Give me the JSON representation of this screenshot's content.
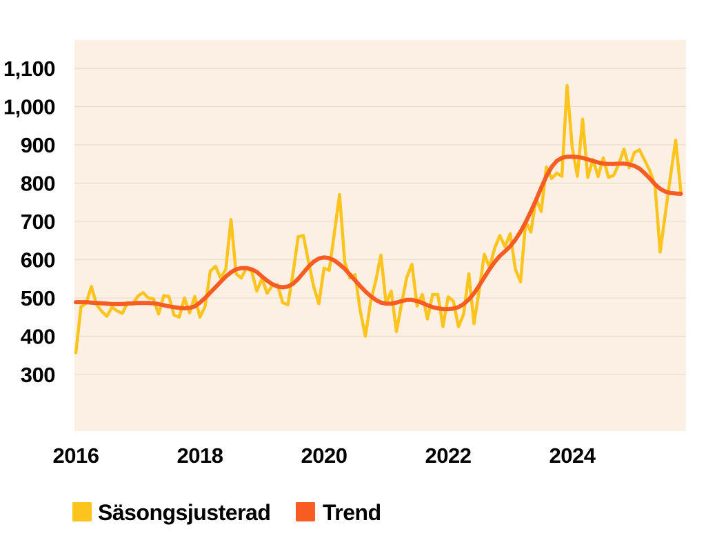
{
  "chart_data": {
    "type": "line",
    "frequency": "monthly",
    "x_start": "2016-01",
    "x_end": "2025-10",
    "x_axis": {
      "ticks": [
        {
          "year": 2016,
          "label": "2016"
        },
        {
          "year": 2018,
          "label": "2018"
        },
        {
          "year": 2020,
          "label": "2020"
        },
        {
          "year": 2022,
          "label": "2022"
        },
        {
          "year": 2024,
          "label": "2024"
        }
      ]
    },
    "y_axis": {
      "range": [
        300,
        1100
      ],
      "ticks": [
        {
          "value": 300,
          "label": "300"
        },
        {
          "value": 400,
          "label": "400"
        },
        {
          "value": 500,
          "label": "500"
        },
        {
          "value": 600,
          "label": "600"
        },
        {
          "value": 700,
          "label": "700"
        },
        {
          "value": 800,
          "label": "800"
        },
        {
          "value": 900,
          "label": "900"
        },
        {
          "value": 1000,
          "label": "1,000"
        },
        {
          "value": 1100,
          "label": "1,100"
        }
      ]
    },
    "grid": "horizontal",
    "legend_position": "bottom",
    "colors": {
      "page_background": "#FFFFFF",
      "plot_background": "#FBF0E3",
      "grid_line": "#E8DCCD",
      "text": "#000000"
    },
    "series": [
      {
        "name": "Säsongsjusterad",
        "color": "#FCC41C",
        "stroke_width": 4.5,
        "values": [
          357,
          477,
          486,
          530,
          483,
          465,
          452,
          476,
          466,
          460,
          488,
          484,
          505,
          514,
          500,
          498,
          458,
          506,
          504,
          455,
          450,
          500,
          461,
          504,
          450,
          478,
          570,
          583,
          552,
          575,
          705,
          563,
          552,
          579,
          570,
          518,
          551,
          512,
          533,
          535,
          488,
          482,
          565,
          660,
          663,
          594,
          530,
          485,
          578,
          572,
          670,
          770,
          594,
          552,
          561,
          467,
          400,
          490,
          545,
          612,
          485,
          518,
          412,
          485,
          554,
          588,
          479,
          509,
          445,
          509,
          509,
          425,
          503,
          492,
          425,
          458,
          563,
          433,
          520,
          614,
          580,
          630,
          663,
          634,
          668,
          575,
          542,
          700,
          672,
          760,
          726,
          842,
          812,
          826,
          818,
          1055,
          893,
          818,
          967,
          815,
          862,
          817,
          866,
          815,
          820,
          850,
          889,
          840,
          880,
          887,
          860,
          832,
          795,
          620,
          720,
          818,
          912,
          778
        ]
      },
      {
        "name": "Trend",
        "color": "#F75C23",
        "stroke_width": 6,
        "values": [
          489,
          489,
          489,
          488,
          487,
          486,
          485,
          484,
          484,
          484,
          485,
          486,
          487,
          487,
          487,
          486,
          484,
          481,
          478,
          476,
          474,
          473,
          474,
          478,
          488,
          500,
          514,
          528,
          542,
          556,
          567,
          575,
          578,
          578,
          575,
          568,
          556,
          545,
          536,
          530,
          528,
          530,
          537,
          550,
          566,
          582,
          595,
          603,
          606,
          604,
          598,
          588,
          576,
          561,
          546,
          531,
          517,
          505,
          495,
          488,
          485,
          485,
          488,
          492,
          495,
          495,
          492,
          487,
          481,
          476,
          473,
          471,
          471,
          472,
          476,
          484,
          496,
          512,
          532,
          554,
          575,
          594,
          610,
          622,
          635,
          652,
          673,
          698,
          726,
          756,
          788,
          818,
          842,
          858,
          866,
          869,
          869,
          868,
          866,
          862,
          858,
          854,
          851,
          850,
          850,
          851,
          851,
          849,
          845,
          838,
          826,
          812,
          797,
          785,
          778,
          774,
          773,
          772
        ]
      }
    ]
  }
}
